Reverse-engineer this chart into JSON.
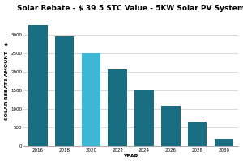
{
  "title": "Solar Rebate - $ 39.5 STC Value - 5KW Solar PV System",
  "xlabel": "YEAR",
  "ylabel": "SOLAR REBATE AMOUNT - $",
  "years": [
    2016,
    2018,
    2020,
    2022,
    2024,
    2026,
    2028,
    2030
  ],
  "values": [
    3250,
    2950,
    2500,
    2050,
    1500,
    1075,
    650,
    200
  ],
  "bar_colors": [
    "#1a6e82",
    "#1a6e82",
    "#3db8d4",
    "#1a6e82",
    "#1a6e82",
    "#1a6e82",
    "#1a6e82",
    "#1a6e82"
  ],
  "ylim": [
    0,
    3500
  ],
  "yticks": [
    0,
    500,
    1000,
    1500,
    2000,
    2500,
    3000
  ],
  "background_color": "#ffffff",
  "title_fontsize": 6.5,
  "axis_label_fontsize": 4.5,
  "tick_fontsize": 4.0,
  "grid_color": "#cccccc"
}
